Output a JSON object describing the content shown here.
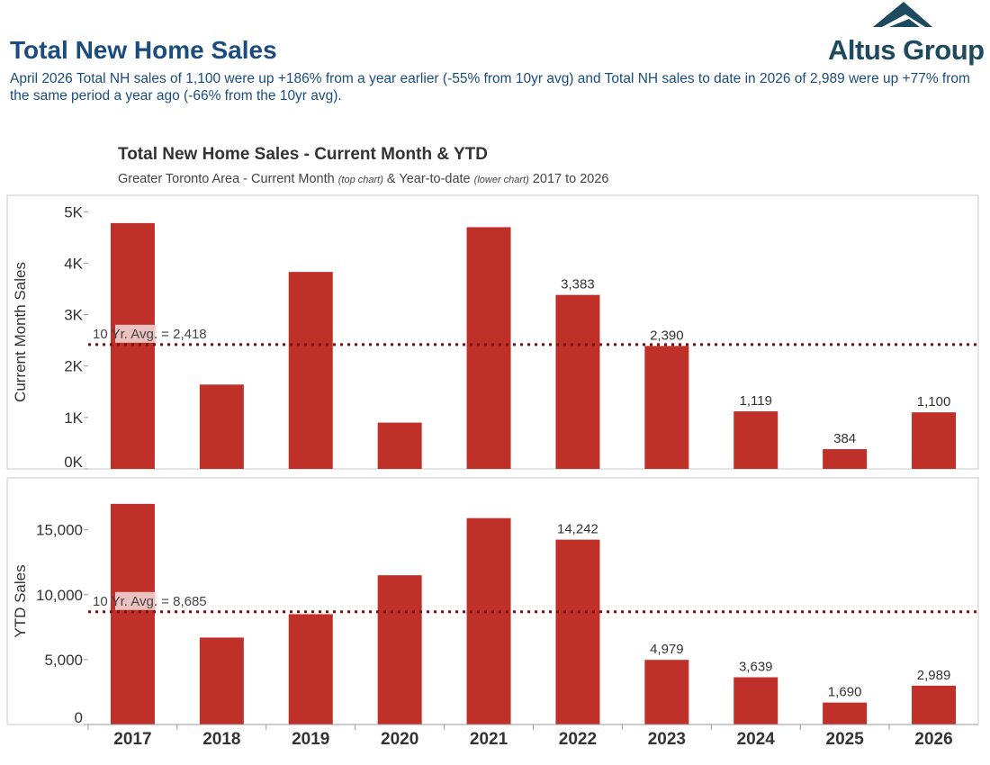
{
  "header": {
    "title": "Total New Home Sales",
    "summary": "April 2026 Total NH sales of 1,100 were up +186% from a year earlier (-55% from 10yr avg) and Total NH sales to date in 2026 of 2,989 were up +77% from the same period a year ago (-66% from the 10yr avg)."
  },
  "logo": {
    "text": "Altus Group",
    "color": "#1d4a5e"
  },
  "chart_data": [
    {
      "type": "bar",
      "title": "Total New Home Sales - Current Month & YTD",
      "subtitle": {
        "part1": "Greater Toronto Area - Current Month ",
        "note1": "(top chart)",
        "part2": " & Year-to-date ",
        "note2": "(lower chart)",
        "part3": " 2017 to 2026"
      },
      "ylabel": "Current Month Sales",
      "categories": [
        "2017",
        "2018",
        "2019",
        "2020",
        "2021",
        "2022",
        "2023",
        "2024",
        "2025",
        "2026"
      ],
      "values": [
        4780,
        1640,
        3830,
        900,
        4700,
        3383,
        2390,
        1119,
        384,
        1100
      ],
      "data_labels": [
        "",
        "",
        "",
        "",
        "",
        "3,383",
        "2,390",
        "1,119",
        "384",
        "1,100"
      ],
      "ylim": [
        0,
        5320
      ],
      "yticks": [
        0,
        1000,
        2000,
        3000,
        4000,
        5000
      ],
      "ytick_labels": [
        "0K",
        "1K",
        "2K",
        "3K",
        "4K",
        "5K"
      ],
      "reference_line": {
        "value": 2418,
        "label": "10 Yr. Avg. = 2,418"
      },
      "bar_color": "#bf3128",
      "ref_color": "#7b1010"
    },
    {
      "type": "bar",
      "ylabel": "YTD Sales",
      "categories": [
        "2017",
        "2018",
        "2019",
        "2020",
        "2021",
        "2022",
        "2023",
        "2024",
        "2025",
        "2026"
      ],
      "values": [
        17000,
        6700,
        8500,
        11500,
        15900,
        14242,
        4979,
        3639,
        1690,
        2989
      ],
      "data_labels": [
        "",
        "",
        "",
        "",
        "",
        "14,242",
        "4,979",
        "3,639",
        "1,690",
        "2,989"
      ],
      "ylim": [
        0,
        19000
      ],
      "yticks": [
        0,
        5000,
        10000,
        15000
      ],
      "ytick_labels": [
        "0",
        "5,000",
        "10,000",
        "15,000"
      ],
      "reference_line": {
        "value": 8685,
        "label": "10 Yr. Avg. = 8,685"
      },
      "bar_color": "#bf3128",
      "ref_color": "#7b1010"
    }
  ]
}
